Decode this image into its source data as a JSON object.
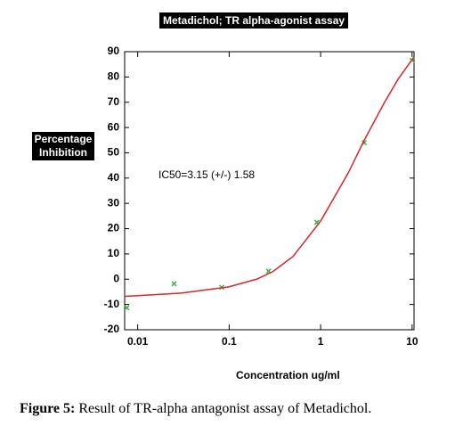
{
  "chart_data": {
    "type": "scatter",
    "title": "Metadichol; TR alpha-agonist assay",
    "y_label": "Percentage Inhibition",
    "x_label": "Concentration ug/ml",
    "annotation": "IC50=3.15 (+/-) 1.58",
    "xscale": "log",
    "xlim": [
      0.0072,
      10.5
    ],
    "xticks": [
      0.01,
      0.1,
      1,
      10
    ],
    "ylim": [
      -20,
      90
    ],
    "yticks": [
      -20,
      -10,
      0,
      10,
      20,
      30,
      40,
      50,
      60,
      70,
      80,
      90
    ],
    "grid": false,
    "series": [
      {
        "type": "scatter",
        "color": "#3cb043",
        "x": [
          0.0076,
          0.025,
          0.083,
          0.27,
          0.91,
          3.0,
          10.0
        ],
        "values": [
          -11.3,
          -1.8,
          -3.2,
          3.2,
          22.5,
          54,
          86.6
        ]
      },
      {
        "type": "line",
        "color": "#d62728",
        "x": [
          0.0072,
          0.01,
          0.03,
          0.1,
          0.2,
          0.3,
          0.5,
          1,
          2,
          3,
          5,
          7,
          10.5
        ],
        "values": [
          -6.8,
          -6.5,
          -5.5,
          -3,
          0,
          3,
          9,
          23,
          42,
          55,
          70,
          79,
          88
        ]
      }
    ]
  },
  "caption": {
    "label": "Figure 5:",
    "text": "Result of TR-alpha antagonist assay of Metadichol."
  }
}
